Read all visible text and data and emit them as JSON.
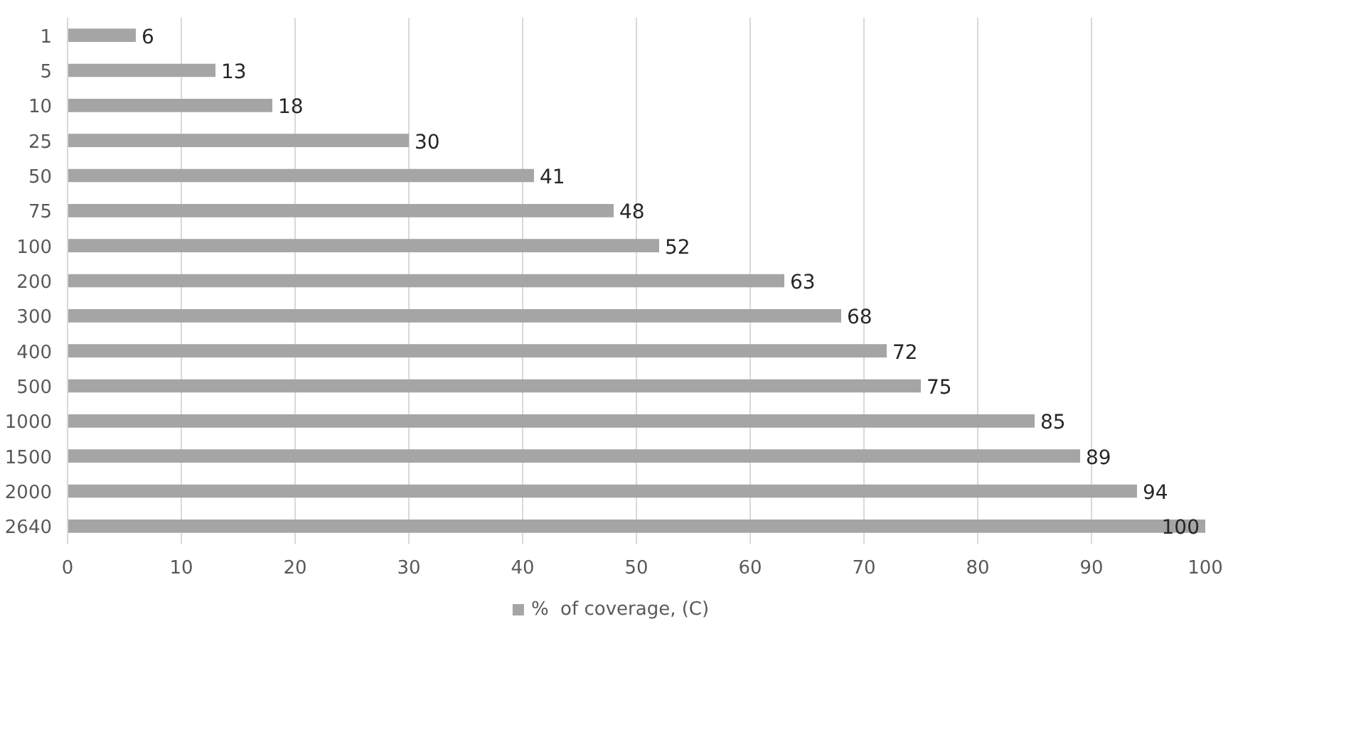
{
  "chart_data": {
    "type": "bar",
    "orientation": "horizontal",
    "categories": [
      "1",
      "5",
      "10",
      "25",
      "50",
      "75",
      "100",
      "200",
      "300",
      "400",
      "500",
      "1000",
      "1500",
      "2000",
      "2640"
    ],
    "series": [
      {
        "name": "%  of coverage, (C)",
        "color": "#a5a5a5",
        "values": [
          6,
          13,
          18,
          30,
          41,
          48,
          52,
          63,
          68,
          72,
          75,
          85,
          89,
          94,
          100
        ]
      }
    ],
    "xlim": [
      0,
      100
    ],
    "xticks": [
      0,
      10,
      20,
      30,
      40,
      50,
      60,
      70,
      80,
      90,
      100
    ],
    "grid": "x",
    "legend": "bottom",
    "data_labels": true
  }
}
